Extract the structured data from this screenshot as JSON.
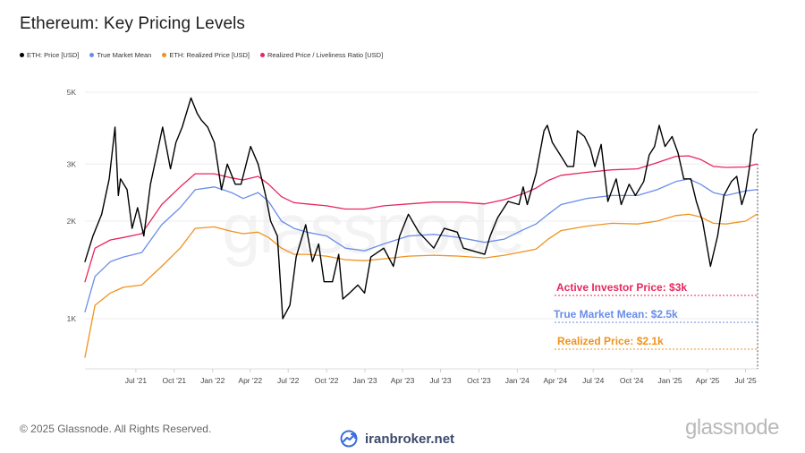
{
  "title": "Ethereum: Key Pricing Levels",
  "legend": [
    {
      "label": "ETH: Price [USD]",
      "color": "#000000"
    },
    {
      "label": "True Market Mean",
      "color": "#6a8de8"
    },
    {
      "label": "ETH: Realized Price [USD]",
      "color": "#f0921e"
    },
    {
      "label": "Realized Price / Liveliness Ratio [USD]",
      "color": "#e8265e"
    }
  ],
  "footer": {
    "copyright": "© 2025 Glassnode. All Rights Reserved.",
    "brand_center": "iranbroker.net",
    "brand_right": "glassnode",
    "watermark": "glassnode"
  },
  "chart_data": {
    "type": "line",
    "title": "Ethereum: Key Pricing Levels",
    "y_scale": "log",
    "ylim": [
      700,
      5000
    ],
    "y_ticks": [
      {
        "value": 1000,
        "label": "1K"
      },
      {
        "value": 2000,
        "label": "2K"
      },
      {
        "value": 3000,
        "label": "3K"
      },
      {
        "value": 5000,
        "label": "5K"
      }
    ],
    "x_range": [
      "2021-03-01",
      "2025-08-01"
    ],
    "x_ticks": [
      {
        "date": "2021-07-01",
        "label": "Jul '21"
      },
      {
        "date": "2021-10-01",
        "label": "Oct '21"
      },
      {
        "date": "2022-01-01",
        "label": "Jan '22"
      },
      {
        "date": "2022-04-01",
        "label": "Apr '22"
      },
      {
        "date": "2022-07-01",
        "label": "Jul '22"
      },
      {
        "date": "2022-10-01",
        "label": "Oct '22"
      },
      {
        "date": "2023-01-01",
        "label": "Jan '23"
      },
      {
        "date": "2023-04-01",
        "label": "Apr '23"
      },
      {
        "date": "2023-07-01",
        "label": "Jul '23"
      },
      {
        "date": "2023-10-01",
        "label": "Oct '23"
      },
      {
        "date": "2024-01-01",
        "label": "Jan '24"
      },
      {
        "date": "2024-04-01",
        "label": "Apr '24"
      },
      {
        "date": "2024-07-01",
        "label": "Jul '24"
      },
      {
        "date": "2024-10-01",
        "label": "Oct '24"
      },
      {
        "date": "2025-01-01",
        "label": "Jan '25"
      },
      {
        "date": "2025-04-01",
        "label": "Apr '25"
      },
      {
        "date": "2025-07-01",
        "label": "Jul '25"
      }
    ],
    "grid": true,
    "series": [
      {
        "name": "ETH: Price [USD]",
        "color": "#000000",
        "points": [
          [
            "2021-03-01",
            1500
          ],
          [
            "2021-03-20",
            1800
          ],
          [
            "2021-04-10",
            2100
          ],
          [
            "2021-04-28",
            2700
          ],
          [
            "2021-05-12",
            3900
          ],
          [
            "2021-05-20",
            2400
          ],
          [
            "2021-05-25",
            2700
          ],
          [
            "2021-06-10",
            2500
          ],
          [
            "2021-06-22",
            1900
          ],
          [
            "2021-07-05",
            2200
          ],
          [
            "2021-07-20",
            1800
          ],
          [
            "2021-08-05",
            2600
          ],
          [
            "2021-08-20",
            3200
          ],
          [
            "2021-09-03",
            3900
          ],
          [
            "2021-09-22",
            2900
          ],
          [
            "2021-10-05",
            3500
          ],
          [
            "2021-10-20",
            3900
          ],
          [
            "2021-11-10",
            4800
          ],
          [
            "2021-11-25",
            4300
          ],
          [
            "2021-12-05",
            4100
          ],
          [
            "2021-12-20",
            3900
          ],
          [
            "2022-01-05",
            3500
          ],
          [
            "2022-01-22",
            2500
          ],
          [
            "2022-02-05",
            3000
          ],
          [
            "2022-02-24",
            2600
          ],
          [
            "2022-03-10",
            2600
          ],
          [
            "2022-04-02",
            3400
          ],
          [
            "2022-04-20",
            3000
          ],
          [
            "2022-05-08",
            2400
          ],
          [
            "2022-05-20",
            2000
          ],
          [
            "2022-06-05",
            1800
          ],
          [
            "2022-06-18",
            1000
          ],
          [
            "2022-07-05",
            1100
          ],
          [
            "2022-07-20",
            1550
          ],
          [
            "2022-08-12",
            1950
          ],
          [
            "2022-08-28",
            1500
          ],
          [
            "2022-09-12",
            1700
          ],
          [
            "2022-09-25",
            1300
          ],
          [
            "2022-10-15",
            1300
          ],
          [
            "2022-10-30",
            1580
          ],
          [
            "2022-11-09",
            1150
          ],
          [
            "2022-11-25",
            1200
          ],
          [
            "2022-12-15",
            1270
          ],
          [
            "2022-12-31",
            1200
          ],
          [
            "2023-01-15",
            1550
          ],
          [
            "2023-02-15",
            1650
          ],
          [
            "2023-03-10",
            1450
          ],
          [
            "2023-03-25",
            1800
          ],
          [
            "2023-04-15",
            2100
          ],
          [
            "2023-05-10",
            1850
          ],
          [
            "2023-06-15",
            1650
          ],
          [
            "2023-07-10",
            1900
          ],
          [
            "2023-08-10",
            1850
          ],
          [
            "2023-08-25",
            1650
          ],
          [
            "2023-09-15",
            1620
          ],
          [
            "2023-10-15",
            1580
          ],
          [
            "2023-10-28",
            1800
          ],
          [
            "2023-11-15",
            2050
          ],
          [
            "2023-12-10",
            2300
          ],
          [
            "2024-01-05",
            2250
          ],
          [
            "2024-01-15",
            2550
          ],
          [
            "2024-01-25",
            2250
          ],
          [
            "2024-02-15",
            2800
          ],
          [
            "2024-03-05",
            3800
          ],
          [
            "2024-03-13",
            3950
          ],
          [
            "2024-03-25",
            3500
          ],
          [
            "2024-04-13",
            3200
          ],
          [
            "2024-04-30",
            2950
          ],
          [
            "2024-05-15",
            2950
          ],
          [
            "2024-05-24",
            3800
          ],
          [
            "2024-06-10",
            3650
          ],
          [
            "2024-06-24",
            3350
          ],
          [
            "2024-07-05",
            2950
          ],
          [
            "2024-07-20",
            3450
          ],
          [
            "2024-08-05",
            2300
          ],
          [
            "2024-08-25",
            2700
          ],
          [
            "2024-09-06",
            2250
          ],
          [
            "2024-09-25",
            2600
          ],
          [
            "2024-10-10",
            2400
          ],
          [
            "2024-10-30",
            2650
          ],
          [
            "2024-11-12",
            3200
          ],
          [
            "2024-11-25",
            3400
          ],
          [
            "2024-12-06",
            3950
          ],
          [
            "2024-12-20",
            3400
          ],
          [
            "2025-01-06",
            3650
          ],
          [
            "2025-01-20",
            3250
          ],
          [
            "2025-02-03",
            2700
          ],
          [
            "2025-02-20",
            2700
          ],
          [
            "2025-03-05",
            2300
          ],
          [
            "2025-03-20",
            2000
          ],
          [
            "2025-04-08",
            1450
          ],
          [
            "2025-04-25",
            1800
          ],
          [
            "2025-05-10",
            2400
          ],
          [
            "2025-05-28",
            2650
          ],
          [
            "2025-06-10",
            2750
          ],
          [
            "2025-06-22",
            2250
          ],
          [
            "2025-07-01",
            2450
          ],
          [
            "2025-07-10",
            2900
          ],
          [
            "2025-07-20",
            3700
          ],
          [
            "2025-07-28",
            3850
          ]
        ]
      },
      {
        "name": "True Market Mean",
        "color": "#6a8de8",
        "points": [
          [
            "2021-03-01",
            1050
          ],
          [
            "2021-03-25",
            1350
          ],
          [
            "2021-05-01",
            1500
          ],
          [
            "2021-06-01",
            1550
          ],
          [
            "2021-07-15",
            1600
          ],
          [
            "2021-09-01",
            1950
          ],
          [
            "2021-10-15",
            2200
          ],
          [
            "2021-11-20",
            2500
          ],
          [
            "2022-01-05",
            2550
          ],
          [
            "2022-02-15",
            2450
          ],
          [
            "2022-03-15",
            2350
          ],
          [
            "2022-04-20",
            2450
          ],
          [
            "2022-05-15",
            2300
          ],
          [
            "2022-06-15",
            2000
          ],
          [
            "2022-07-15",
            1900
          ],
          [
            "2022-08-15",
            1850
          ],
          [
            "2022-10-01",
            1800
          ],
          [
            "2022-11-15",
            1650
          ],
          [
            "2022-12-31",
            1620
          ],
          [
            "2023-02-15",
            1700
          ],
          [
            "2023-04-15",
            1800
          ],
          [
            "2023-06-15",
            1820
          ],
          [
            "2023-08-15",
            1780
          ],
          [
            "2023-10-15",
            1720
          ],
          [
            "2023-12-01",
            1760
          ],
          [
            "2024-01-15",
            1880
          ],
          [
            "2024-02-15",
            1960
          ],
          [
            "2024-03-15",
            2100
          ],
          [
            "2024-04-15",
            2250
          ],
          [
            "2024-06-15",
            2350
          ],
          [
            "2024-08-15",
            2400
          ],
          [
            "2024-10-15",
            2400
          ],
          [
            "2024-12-01",
            2500
          ],
          [
            "2025-01-15",
            2650
          ],
          [
            "2025-02-15",
            2700
          ],
          [
            "2025-03-15",
            2600
          ],
          [
            "2025-04-15",
            2450
          ],
          [
            "2025-05-15",
            2400
          ],
          [
            "2025-07-01",
            2480
          ],
          [
            "2025-07-28",
            2500
          ]
        ]
      },
      {
        "name": "ETH: Realized Price [USD]",
        "color": "#f0921e",
        "points": [
          [
            "2021-03-01",
            760
          ],
          [
            "2021-03-25",
            1100
          ],
          [
            "2021-05-01",
            1200
          ],
          [
            "2021-06-01",
            1250
          ],
          [
            "2021-07-15",
            1270
          ],
          [
            "2021-09-01",
            1450
          ],
          [
            "2021-10-15",
            1650
          ],
          [
            "2021-11-20",
            1900
          ],
          [
            "2022-01-05",
            1920
          ],
          [
            "2022-02-15",
            1860
          ],
          [
            "2022-03-15",
            1830
          ],
          [
            "2022-04-20",
            1850
          ],
          [
            "2022-05-15",
            1780
          ],
          [
            "2022-06-15",
            1650
          ],
          [
            "2022-07-15",
            1580
          ],
          [
            "2022-08-15",
            1580
          ],
          [
            "2022-10-01",
            1560
          ],
          [
            "2022-11-15",
            1520
          ],
          [
            "2022-12-31",
            1510
          ],
          [
            "2023-02-15",
            1530
          ],
          [
            "2023-04-15",
            1560
          ],
          [
            "2023-06-15",
            1570
          ],
          [
            "2023-08-15",
            1560
          ],
          [
            "2023-10-15",
            1540
          ],
          [
            "2023-12-01",
            1570
          ],
          [
            "2024-01-15",
            1610
          ],
          [
            "2024-02-15",
            1640
          ],
          [
            "2024-03-15",
            1760
          ],
          [
            "2024-04-15",
            1870
          ],
          [
            "2024-06-15",
            1930
          ],
          [
            "2024-08-15",
            1970
          ],
          [
            "2024-10-15",
            1960
          ],
          [
            "2024-12-01",
            2000
          ],
          [
            "2025-01-15",
            2080
          ],
          [
            "2025-02-15",
            2100
          ],
          [
            "2025-03-15",
            2060
          ],
          [
            "2025-04-15",
            1970
          ],
          [
            "2025-05-15",
            1960
          ],
          [
            "2025-07-01",
            2000
          ],
          [
            "2025-07-28",
            2100
          ]
        ]
      },
      {
        "name": "Realized Price / Liveliness Ratio [USD]",
        "color": "#e8265e",
        "points": [
          [
            "2021-03-01",
            1300
          ],
          [
            "2021-03-25",
            1650
          ],
          [
            "2021-05-01",
            1750
          ],
          [
            "2021-06-01",
            1780
          ],
          [
            "2021-07-15",
            1830
          ],
          [
            "2021-09-01",
            2250
          ],
          [
            "2021-10-15",
            2550
          ],
          [
            "2021-11-20",
            2800
          ],
          [
            "2022-01-05",
            2800
          ],
          [
            "2022-02-15",
            2720
          ],
          [
            "2022-03-15",
            2680
          ],
          [
            "2022-04-20",
            2750
          ],
          [
            "2022-05-15",
            2600
          ],
          [
            "2022-06-15",
            2380
          ],
          [
            "2022-07-15",
            2280
          ],
          [
            "2022-08-15",
            2260
          ],
          [
            "2022-10-01",
            2230
          ],
          [
            "2022-11-15",
            2180
          ],
          [
            "2022-12-31",
            2180
          ],
          [
            "2023-02-15",
            2230
          ],
          [
            "2023-04-15",
            2260
          ],
          [
            "2023-06-15",
            2290
          ],
          [
            "2023-08-15",
            2290
          ],
          [
            "2023-10-15",
            2260
          ],
          [
            "2023-12-01",
            2330
          ],
          [
            "2024-01-15",
            2430
          ],
          [
            "2024-02-15",
            2530
          ],
          [
            "2024-03-15",
            2670
          ],
          [
            "2024-04-15",
            2770
          ],
          [
            "2024-06-15",
            2830
          ],
          [
            "2024-08-15",
            2880
          ],
          [
            "2024-10-15",
            2900
          ],
          [
            "2024-12-01",
            3030
          ],
          [
            "2025-01-15",
            3170
          ],
          [
            "2025-02-15",
            3180
          ],
          [
            "2025-03-15",
            3100
          ],
          [
            "2025-04-15",
            2950
          ],
          [
            "2025-05-15",
            2930
          ],
          [
            "2025-07-01",
            2940
          ],
          [
            "2025-07-28",
            3000
          ]
        ]
      }
    ],
    "annotations": [
      {
        "text": "Active Investor Price: $3k",
        "color": "#e8265e",
        "value": 3000
      },
      {
        "text": "True Market Mean: $2.5k",
        "color": "#6a8de8",
        "value": 2500
      },
      {
        "text": "Realized Price: $2.1k",
        "color": "#f0921e",
        "value": 2100
      }
    ]
  }
}
